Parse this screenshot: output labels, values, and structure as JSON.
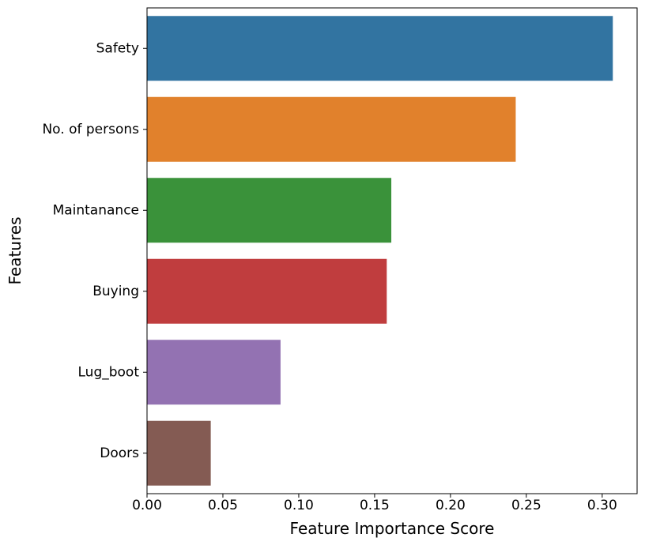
{
  "chart_data": {
    "type": "bar",
    "orientation": "horizontal",
    "categories": [
      "Safety",
      "No. of persons",
      "Maintanance",
      "Buying",
      "Lug_boot",
      "Doors"
    ],
    "values": [
      0.307,
      0.243,
      0.161,
      0.158,
      0.088,
      0.042
    ],
    "colors": [
      "#3274a1",
      "#e1812c",
      "#3a923a",
      "#c03d3e",
      "#9372b2",
      "#845b53"
    ],
    "xlabel": "Feature Importance Score",
    "ylabel": "Features",
    "xlim": [
      0,
      0.323
    ],
    "xticks": [
      "0.00",
      "0.05",
      "0.10",
      "0.15",
      "0.20",
      "0.25",
      "0.30"
    ],
    "grid": false,
    "legend": "none"
  }
}
